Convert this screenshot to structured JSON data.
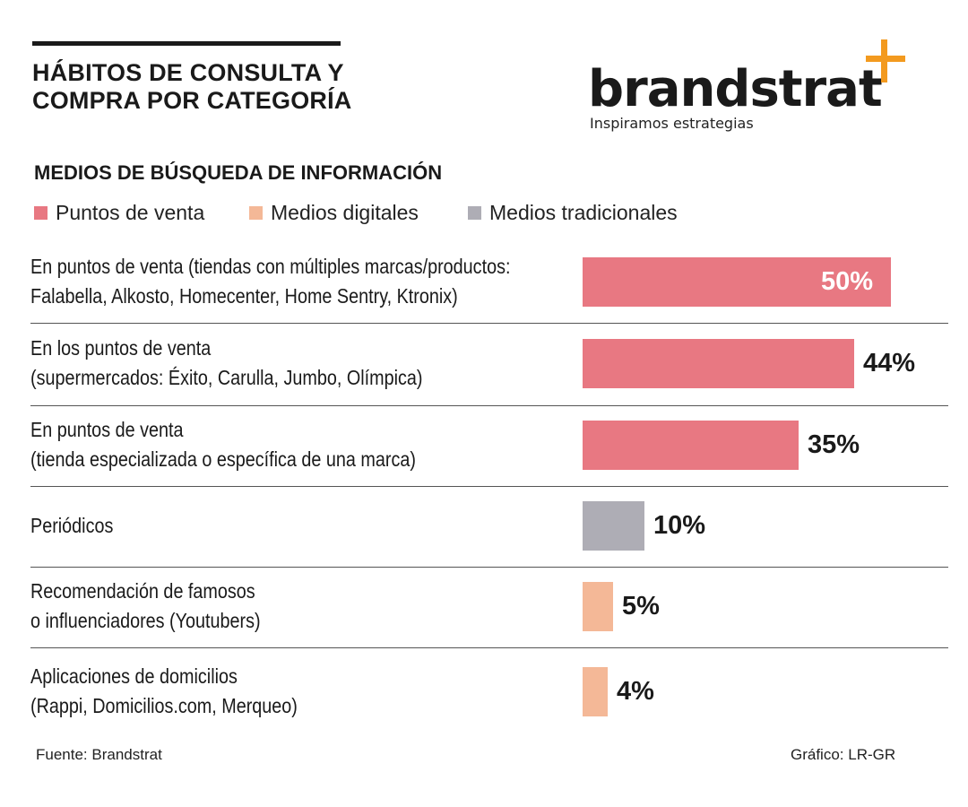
{
  "header": {
    "title_lines": [
      "HÁBITOS DE CONSULTA Y",
      "COMPRA POR CATEGORÍA"
    ]
  },
  "logo": {
    "wordmark": "brandstrat",
    "tagline": "Inspiramos estrategias",
    "plus_color": "#f39a1f"
  },
  "chart_data": {
    "type": "bar",
    "orientation": "horizontal",
    "title": "MEDIOS DE BÚSQUEDA DE INFORMACIÓN",
    "legend": [
      {
        "name": "Puntos de venta",
        "color": "#e87882"
      },
      {
        "name": "Medios digitales",
        "color": "#f4b897"
      },
      {
        "name": "Medios tradicionales",
        "color": "#aeadb5"
      }
    ],
    "categories": [
      [
        "En puntos de venta (tiendas con múltiples marcas/productos:",
        "Falabella, Alkosto, Homecenter, Home Sentry, Ktronix)"
      ],
      [
        "En los puntos de venta",
        "(supermercados: Éxito, Carulla, Jumbo, Olímpica)"
      ],
      [
        "En puntos de venta",
        "(tienda especializada o específica de una marca)"
      ],
      [
        "Periódicos"
      ],
      [
        "Recomendación de famosos",
        "o influenciadores (Youtubers)"
      ],
      [
        "Aplicaciones de domicilios",
        "(Rappi, Domicilios.com, Merqueo)"
      ]
    ],
    "values": [
      50,
      44,
      35,
      10,
      5,
      4
    ],
    "value_labels": [
      "50%",
      "44%",
      "35%",
      "10%",
      "5%",
      "4%"
    ],
    "groups": [
      "Puntos de venta",
      "Puntos de venta",
      "Puntos de venta",
      "Medios tradicionales",
      "Medios digitales",
      "Medios digitales"
    ],
    "unit": "%",
    "xlim": [
      0,
      50
    ],
    "grid": false
  },
  "footer": {
    "source": "Fuente: Brandstrat",
    "credit": "Gráfico: LR-GR"
  }
}
